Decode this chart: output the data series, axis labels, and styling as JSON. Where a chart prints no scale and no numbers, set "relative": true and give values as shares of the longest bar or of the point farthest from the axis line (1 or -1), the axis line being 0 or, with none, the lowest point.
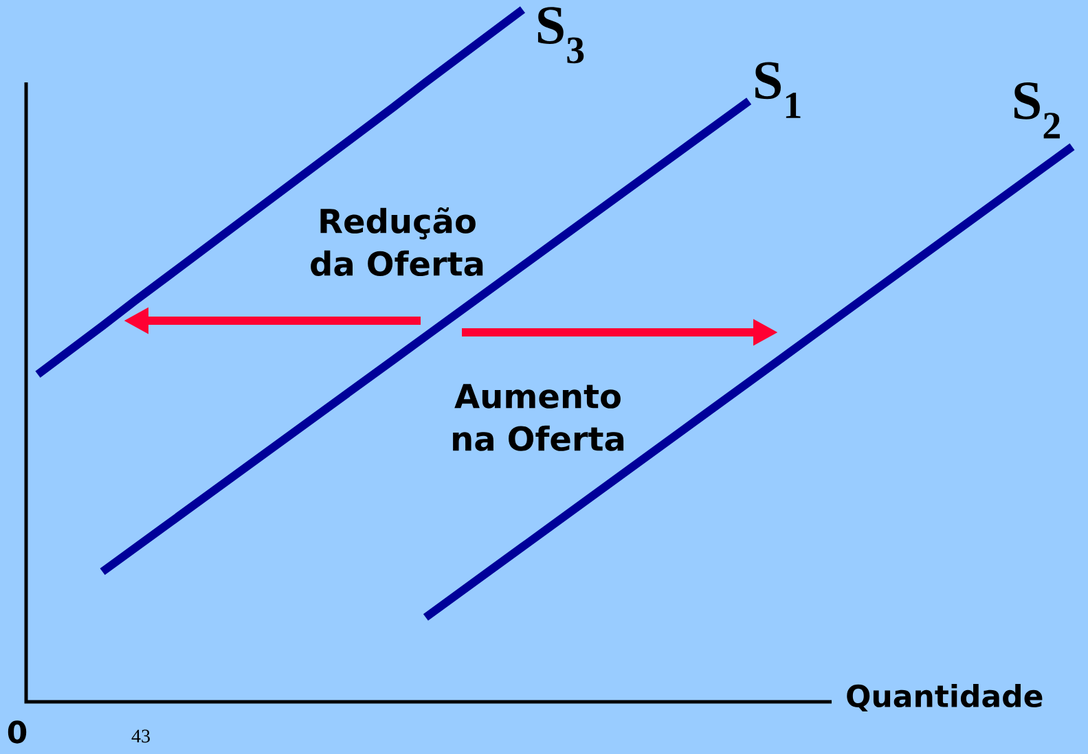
{
  "chart_data": {
    "type": "line",
    "xlabel": "Quantidade",
    "relative": true,
    "categories": [
      null,
      null,
      null,
      null,
      null,
      null,
      null,
      null,
      null,
      null,
      null,
      null,
      null,
      null,
      null,
      null,
      null,
      null,
      null,
      null,
      null,
      null,
      null,
      null,
      null,
      null,
      null,
      null,
      null,
      null,
      null,
      null,
      null
    ],
    "series": [
      {
        "name": "S$_{3}$",
        "color": "#000099",
        "values": [
          0.473,
          0.508,
          0.543,
          0.579,
          0.614,
          0.649,
          0.684,
          0.719,
          0.754,
          0.789,
          0.824,
          0.859,
          0.895,
          0.93,
          0.965,
          1.0,
          null,
          null,
          null,
          null,
          null,
          null,
          null,
          null,
          null,
          null,
          null,
          null,
          null,
          null,
          null,
          null,
          null
        ]
      },
      {
        "name": "S$_{1}$",
        "color": "#000099",
        "values": [
          null,
          null,
          0.188,
          0.222,
          0.256,
          0.29,
          0.324,
          0.358,
          0.392,
          0.426,
          0.46,
          0.494,
          0.528,
          0.562,
          0.596,
          0.63,
          0.664,
          0.698,
          0.732,
          0.766,
          0.8,
          0.834,
          0.868,
          null,
          null,
          null,
          null,
          null,
          null,
          null,
          null,
          null,
          null
        ]
      },
      {
        "name": "S$_{2}$",
        "color": "#000099",
        "values": [
          null,
          null,
          null,
          null,
          null,
          null,
          null,
          null,
          null,
          null,
          null,
          null,
          0.122,
          0.156,
          0.19,
          0.224,
          0.258,
          0.292,
          0.326,
          0.36,
          0.394,
          0.428,
          0.462,
          0.496,
          0.53,
          0.564,
          0.598,
          0.632,
          0.666,
          0.7,
          0.734,
          0.768,
          0.802
        ]
      }
    ],
    "annotations": [
      "Redução da Oferta",
      "Aumento na Oferta",
      "0",
      "43"
    ]
  }
}
